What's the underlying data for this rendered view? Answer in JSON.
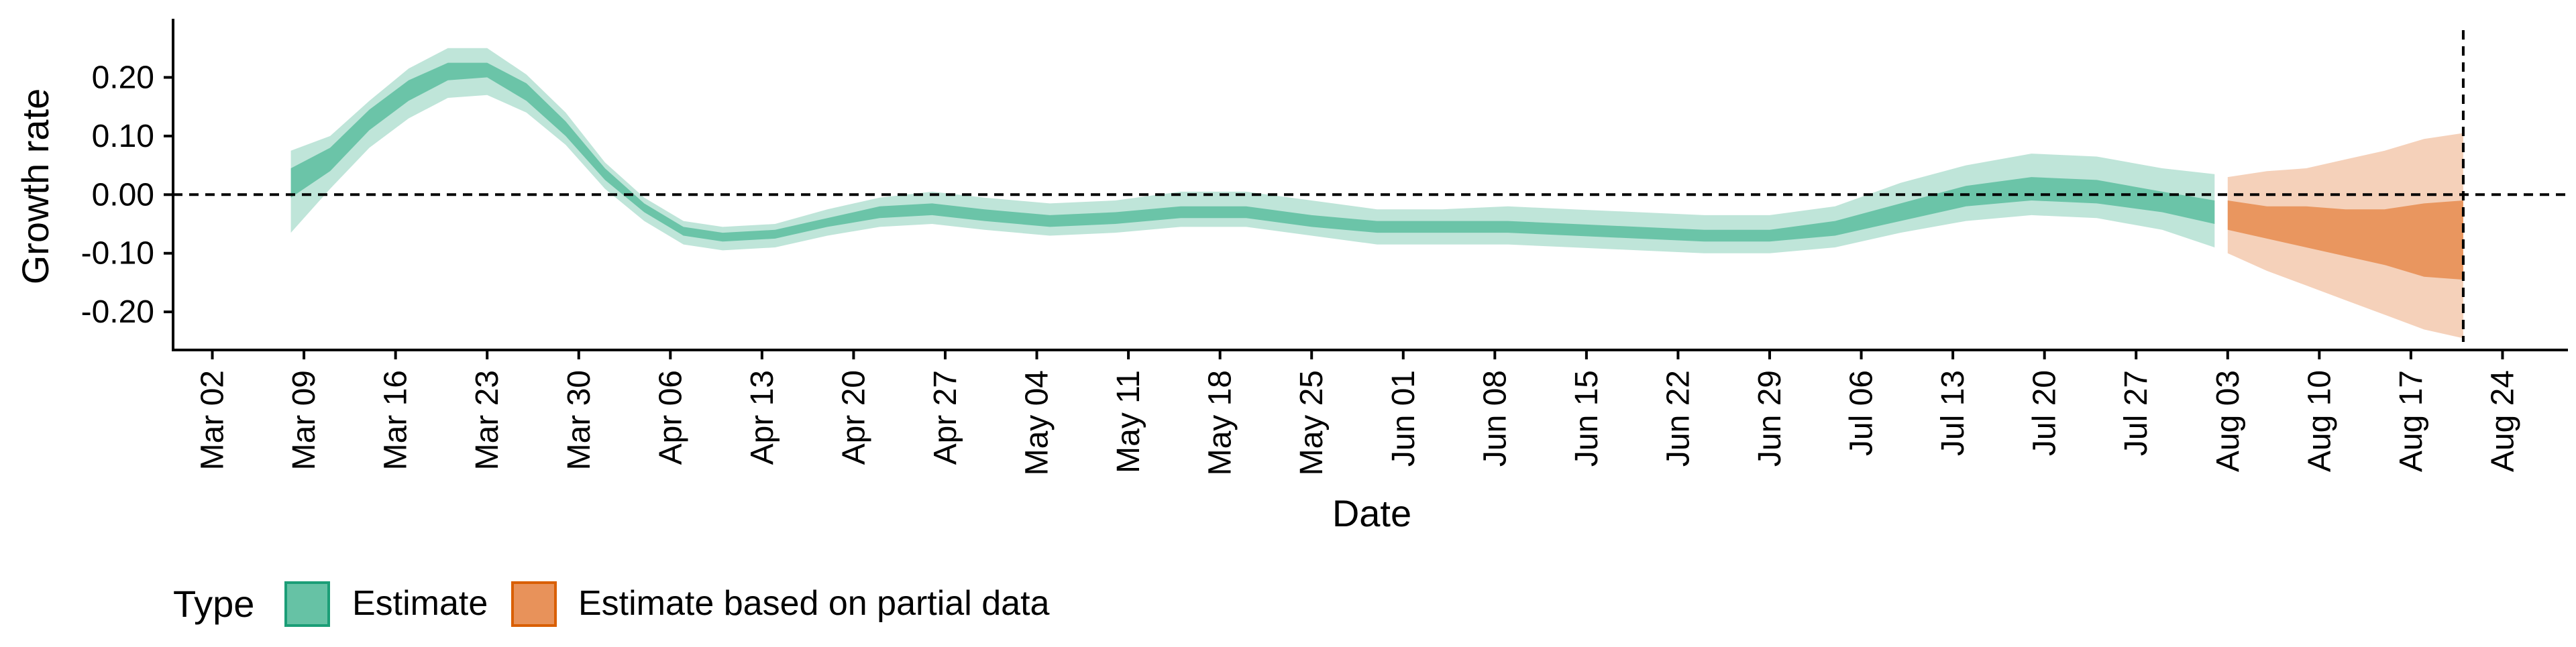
{
  "chart_data": {
    "type": "area",
    "xlabel": "Date",
    "ylabel": "Growth rate",
    "ylim": [
      -0.265,
      0.3
    ],
    "xlim": [
      "2020-02-28",
      "2020-08-29"
    ],
    "yticks": [
      {
        "value": 0.2,
        "label": "0.20"
      },
      {
        "value": 0.1,
        "label": "0.10"
      },
      {
        "value": 0.0,
        "label": "0.00"
      },
      {
        "value": -0.1,
        "label": "-0.10"
      },
      {
        "value": -0.2,
        "label": "-0.20"
      }
    ],
    "xticks": [
      {
        "date": "2020-03-02",
        "label": "Mar 02"
      },
      {
        "date": "2020-03-09",
        "label": "Mar 09"
      },
      {
        "date": "2020-03-16",
        "label": "Mar 16"
      },
      {
        "date": "2020-03-23",
        "label": "Mar 23"
      },
      {
        "date": "2020-03-30",
        "label": "Mar 30"
      },
      {
        "date": "2020-04-06",
        "label": "Apr 06"
      },
      {
        "date": "2020-04-13",
        "label": "Apr 13"
      },
      {
        "date": "2020-04-20",
        "label": "Apr 20"
      },
      {
        "date": "2020-04-27",
        "label": "Apr 27"
      },
      {
        "date": "2020-05-04",
        "label": "May 04"
      },
      {
        "date": "2020-05-11",
        "label": "May 11"
      },
      {
        "date": "2020-05-18",
        "label": "May 18"
      },
      {
        "date": "2020-05-25",
        "label": "May 25"
      },
      {
        "date": "2020-06-01",
        "label": "Jun 01"
      },
      {
        "date": "2020-06-08",
        "label": "Jun 08"
      },
      {
        "date": "2020-06-15",
        "label": "Jun 15"
      },
      {
        "date": "2020-06-22",
        "label": "Jun 22"
      },
      {
        "date": "2020-06-29",
        "label": "Jun 29"
      },
      {
        "date": "2020-07-06",
        "label": "Jul 06"
      },
      {
        "date": "2020-07-13",
        "label": "Jul 13"
      },
      {
        "date": "2020-07-20",
        "label": "Jul 20"
      },
      {
        "date": "2020-07-27",
        "label": "Jul 27"
      },
      {
        "date": "2020-08-03",
        "label": "Aug 03"
      },
      {
        "date": "2020-08-10",
        "label": "Aug 10"
      },
      {
        "date": "2020-08-17",
        "label": "Aug 17"
      },
      {
        "date": "2020-08-24",
        "label": "Aug 24"
      }
    ],
    "reference_lines": {
      "horizontal_y": 0.0,
      "vertical_date": "2020-08-21",
      "style": "dashed"
    },
    "legend": {
      "title": "Type",
      "position": "bottom-left",
      "entries": [
        {
          "label": "Estimate",
          "fill": "#66c2a5",
          "stroke": "#1b9e77"
        },
        {
          "label": "Estimate based on partial data",
          "fill": "#e8925a",
          "stroke": "#d95f02"
        }
      ]
    },
    "series": [
      {
        "name": "Estimate",
        "color": "#66c2a5",
        "points": [
          {
            "date": "2020-03-08",
            "lo90": -0.065,
            "hi90": 0.075,
            "lo50": -0.005,
            "hi50": 0.045
          },
          {
            "date": "2020-03-11",
            "lo90": 0.01,
            "hi90": 0.1,
            "lo50": 0.04,
            "hi50": 0.08
          },
          {
            "date": "2020-03-14",
            "lo90": 0.08,
            "hi90": 0.16,
            "lo50": 0.11,
            "hi50": 0.145
          },
          {
            "date": "2020-03-17",
            "lo90": 0.13,
            "hi90": 0.215,
            "lo50": 0.16,
            "hi50": 0.195
          },
          {
            "date": "2020-03-20",
            "lo90": 0.165,
            "hi90": 0.25,
            "lo50": 0.195,
            "hi50": 0.225
          },
          {
            "date": "2020-03-23",
            "lo90": 0.17,
            "hi90": 0.25,
            "lo50": 0.2,
            "hi50": 0.225
          },
          {
            "date": "2020-03-26",
            "lo90": 0.14,
            "hi90": 0.205,
            "lo50": 0.16,
            "hi50": 0.19
          },
          {
            "date": "2020-03-29",
            "lo90": 0.085,
            "hi90": 0.14,
            "lo50": 0.1,
            "hi50": 0.125
          },
          {
            "date": "2020-04-01",
            "lo90": 0.01,
            "hi90": 0.055,
            "lo50": 0.025,
            "hi50": 0.045
          },
          {
            "date": "2020-04-04",
            "lo90": -0.045,
            "hi90": -0.005,
            "lo50": -0.03,
            "hi50": -0.015
          },
          {
            "date": "2020-04-07",
            "lo90": -0.085,
            "hi90": -0.045,
            "lo50": -0.07,
            "hi50": -0.055
          },
          {
            "date": "2020-04-10",
            "lo90": -0.095,
            "hi90": -0.055,
            "lo50": -0.08,
            "hi50": -0.065
          },
          {
            "date": "2020-04-14",
            "lo90": -0.09,
            "hi90": -0.05,
            "lo50": -0.075,
            "hi50": -0.06
          },
          {
            "date": "2020-04-18",
            "lo90": -0.07,
            "hi90": -0.025,
            "lo50": -0.055,
            "hi50": -0.04
          },
          {
            "date": "2020-04-22",
            "lo90": -0.055,
            "hi90": -0.005,
            "lo50": -0.04,
            "hi50": -0.02
          },
          {
            "date": "2020-04-26",
            "lo90": -0.05,
            "hi90": 0.005,
            "lo50": -0.035,
            "hi50": -0.015
          },
          {
            "date": "2020-04-30",
            "lo90": -0.06,
            "hi90": -0.005,
            "lo50": -0.045,
            "hi50": -0.025
          },
          {
            "date": "2020-05-05",
            "lo90": -0.07,
            "hi90": -0.015,
            "lo50": -0.055,
            "hi50": -0.035
          },
          {
            "date": "2020-05-10",
            "lo90": -0.065,
            "hi90": -0.01,
            "lo50": -0.05,
            "hi50": -0.03
          },
          {
            "date": "2020-05-15",
            "lo90": -0.055,
            "hi90": 0.005,
            "lo50": -0.04,
            "hi50": -0.02
          },
          {
            "date": "2020-05-20",
            "lo90": -0.055,
            "hi90": 0.005,
            "lo50": -0.04,
            "hi50": -0.02
          },
          {
            "date": "2020-05-25",
            "lo90": -0.07,
            "hi90": -0.01,
            "lo50": -0.055,
            "hi50": -0.035
          },
          {
            "date": "2020-05-30",
            "lo90": -0.085,
            "hi90": -0.025,
            "lo50": -0.065,
            "hi50": -0.045
          },
          {
            "date": "2020-06-04",
            "lo90": -0.085,
            "hi90": -0.025,
            "lo50": -0.065,
            "hi50": -0.045
          },
          {
            "date": "2020-06-09",
            "lo90": -0.085,
            "hi90": -0.02,
            "lo50": -0.065,
            "hi50": -0.045
          },
          {
            "date": "2020-06-14",
            "lo90": -0.09,
            "hi90": -0.025,
            "lo50": -0.07,
            "hi50": -0.05
          },
          {
            "date": "2020-06-19",
            "lo90": -0.095,
            "hi90": -0.03,
            "lo50": -0.075,
            "hi50": -0.055
          },
          {
            "date": "2020-06-24",
            "lo90": -0.1,
            "hi90": -0.035,
            "lo50": -0.08,
            "hi50": -0.06
          },
          {
            "date": "2020-06-29",
            "lo90": -0.1,
            "hi90": -0.035,
            "lo50": -0.08,
            "hi50": -0.06
          },
          {
            "date": "2020-07-04",
            "lo90": -0.09,
            "hi90": -0.02,
            "lo50": -0.07,
            "hi50": -0.045
          },
          {
            "date": "2020-07-09",
            "lo90": -0.065,
            "hi90": 0.02,
            "lo50": -0.045,
            "hi50": -0.015
          },
          {
            "date": "2020-07-14",
            "lo90": -0.045,
            "hi90": 0.05,
            "lo50": -0.02,
            "hi50": 0.015
          },
          {
            "date": "2020-07-19",
            "lo90": -0.035,
            "hi90": 0.07,
            "lo50": -0.01,
            "hi50": 0.03
          },
          {
            "date": "2020-07-24",
            "lo90": -0.04,
            "hi90": 0.065,
            "lo50": -0.015,
            "hi50": 0.025
          },
          {
            "date": "2020-07-29",
            "lo90": -0.06,
            "hi90": 0.045,
            "lo50": -0.03,
            "hi50": 0.005
          },
          {
            "date": "2020-08-02",
            "lo90": -0.09,
            "hi90": 0.035,
            "lo50": -0.05,
            "hi50": -0.01
          }
        ]
      },
      {
        "name": "Estimate based on partial data",
        "color": "#e8925a",
        "points": [
          {
            "date": "2020-08-03",
            "lo90": -0.1,
            "hi90": 0.03,
            "lo50": -0.06,
            "hi50": -0.01
          },
          {
            "date": "2020-08-06",
            "lo90": -0.13,
            "hi90": 0.04,
            "lo50": -0.075,
            "hi50": -0.02
          },
          {
            "date": "2020-08-09",
            "lo90": -0.155,
            "hi90": 0.045,
            "lo50": -0.09,
            "hi50": -0.02
          },
          {
            "date": "2020-08-12",
            "lo90": -0.18,
            "hi90": 0.06,
            "lo50": -0.105,
            "hi50": -0.025
          },
          {
            "date": "2020-08-15",
            "lo90": -0.205,
            "hi90": 0.075,
            "lo50": -0.12,
            "hi50": -0.025
          },
          {
            "date": "2020-08-18",
            "lo90": -0.23,
            "hi90": 0.095,
            "lo50": -0.14,
            "hi50": -0.015
          },
          {
            "date": "2020-08-21",
            "lo90": -0.245,
            "hi90": 0.105,
            "lo50": -0.145,
            "hi50": -0.01
          }
        ]
      }
    ]
  }
}
